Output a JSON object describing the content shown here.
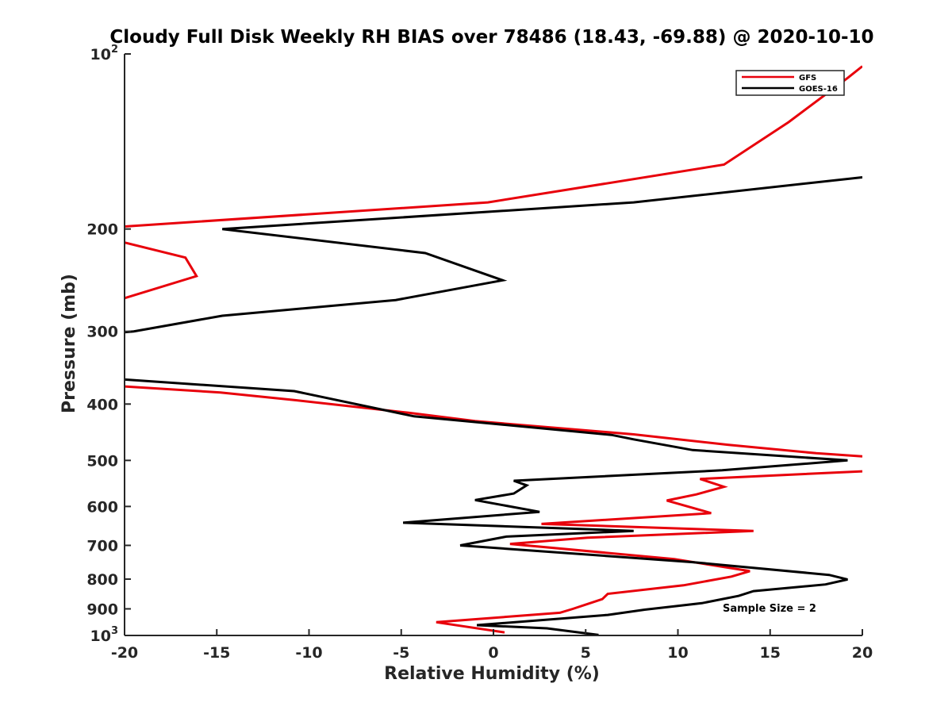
{
  "chart_data": {
    "type": "line",
    "title": "Cloudy Full Disk Weekly RH BIAS over 78486 (18.43, -69.88) @ 2020-10-10",
    "xlabel": "Relative Humidity (%)",
    "ylabel": "Pressure (mb)",
    "xlim": [
      -20,
      20
    ],
    "ylim": [
      100,
      1000
    ],
    "y_scale": "log",
    "y_reversed": true,
    "grid": false,
    "legend_position": "top-right",
    "x_ticks": [
      "-20",
      "-15",
      "-10",
      "-5",
      "0",
      "5",
      "10",
      "15",
      "20"
    ],
    "y_ticks": [
      {
        "value": 100,
        "base": "10",
        "exp": "2"
      },
      {
        "value": 200,
        "label": "200"
      },
      {
        "value": 300,
        "label": "300"
      },
      {
        "value": 400,
        "label": "400"
      },
      {
        "value": 500,
        "label": "500"
      },
      {
        "value": 600,
        "label": "600"
      },
      {
        "value": 700,
        "label": "700"
      },
      {
        "value": 800,
        "label": "800"
      },
      {
        "value": 900,
        "label": "900"
      },
      {
        "value": 1000,
        "base": "10",
        "exp": "3"
      }
    ],
    "series": [
      {
        "name": "GFS",
        "color": "#e8000b",
        "points": [
          [
            20,
            105
          ],
          [
            19.2,
            110
          ],
          [
            16,
            131
          ],
          [
            12.5,
            155
          ],
          [
            -0.3,
            180
          ],
          [
            -20,
            198
          ],
          [
            null,
            null
          ],
          [
            -20,
            211
          ],
          [
            -16.7,
            224
          ],
          [
            -16.1,
            241
          ],
          [
            -20,
            263
          ],
          [
            null,
            null
          ],
          [
            -20,
            373
          ],
          [
            -14.8,
            382
          ],
          [
            -10.7,
            394
          ],
          [
            -4.6,
            414
          ],
          [
            -1,
            428
          ],
          [
            7.6,
            451
          ],
          [
            12.7,
            470
          ],
          [
            17.5,
            486
          ],
          [
            20,
            492
          ],
          [
            null,
            null
          ],
          [
            20,
            522
          ],
          [
            11.2,
            538
          ],
          [
            12.5,
            555
          ],
          [
            11,
            572
          ],
          [
            9.4,
            586
          ],
          [
            11.8,
            616
          ],
          [
            2.6,
            643
          ],
          [
            14.1,
            661
          ],
          [
            5.1,
            679
          ],
          [
            0.9,
            696
          ],
          [
            9.8,
            739
          ],
          [
            13.9,
            775
          ],
          [
            12.9,
            792
          ],
          [
            10.3,
            820
          ],
          [
            6.2,
            848
          ],
          [
            5.9,
            866
          ],
          [
            4.3,
            900
          ],
          [
            3.6,
            914
          ],
          [
            -3.1,
            949
          ],
          [
            0.6,
            988
          ]
        ]
      },
      {
        "name": "GOES-16",
        "color": "#000000",
        "points": [
          [
            20,
            163
          ],
          [
            7.6,
            180
          ],
          [
            -14.7,
            200
          ],
          [
            -3.7,
            220
          ],
          [
            0.5,
            245
          ],
          [
            -5.3,
            265
          ],
          [
            -14.7,
            282
          ],
          [
            -19.5,
            300
          ],
          [
            -20,
            301
          ],
          [
            null,
            null
          ],
          [
            -20,
            363
          ],
          [
            -10.8,
            380
          ],
          [
            -4.3,
            420
          ],
          [
            6.4,
            452
          ],
          [
            7.6,
            460
          ],
          [
            10.8,
            480
          ],
          [
            19.2,
            500
          ],
          [
            12.4,
            520
          ],
          [
            1.1,
            542
          ],
          [
            1.8,
            552
          ],
          [
            1.1,
            570
          ],
          [
            -1,
            585
          ],
          [
            2.5,
            613
          ],
          [
            -4.9,
            640
          ],
          [
            7.6,
            661
          ],
          [
            0.7,
            676
          ],
          [
            -1.8,
            700
          ],
          [
            10.8,
            748
          ],
          [
            18.2,
            787
          ],
          [
            19.2,
            801
          ],
          [
            18,
            817
          ],
          [
            14.1,
            839
          ],
          [
            13.3,
            855
          ],
          [
            11.3,
            880
          ],
          [
            8.2,
            903
          ],
          [
            6.2,
            922
          ],
          [
            -0.9,
            960
          ],
          [
            2.9,
            972
          ],
          [
            5.7,
            998
          ]
        ]
      }
    ],
    "annotation": "Sample Size = 2"
  }
}
